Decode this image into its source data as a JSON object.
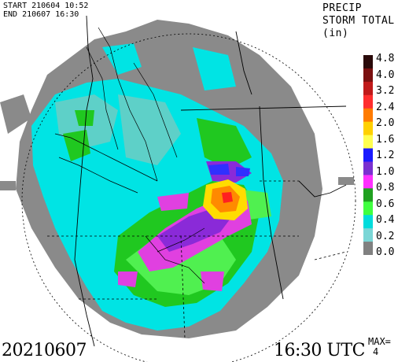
{
  "header": {
    "start_line": "START 210604 10:52",
    "end_line": "END 210607 16:30"
  },
  "title": {
    "line1": "PRECIP",
    "line2": "STORM TOTAL",
    "line3": "(in)"
  },
  "legend": {
    "ticks": [
      "4.8",
      "4.0",
      "3.2",
      "2.4",
      "2.0",
      "1.6",
      "1.2",
      "1.0",
      "0.8",
      "0.6",
      "0.4",
      "0.2",
      "0.0"
    ],
    "colors": [
      "#2a0a0a",
      "#7a1010",
      "#c01a1a",
      "#ff2e2e",
      "#ff7b00",
      "#ffd000",
      "#ffff50",
      "#1a1aff",
      "#7a30d0",
      "#ff30ff",
      "#20a020",
      "#40ff40",
      "#00dcdc",
      "#7ad6d6",
      "#808080"
    ]
  },
  "colors": {
    "gray": "#8a8a8a",
    "cyan": "#00e4e4",
    "teal": "#5ed0c8",
    "green": "#20c820",
    "lightgreen": "#50f050",
    "magenta": "#e040e0",
    "purple": "#8a2ad8",
    "blue": "#3030ff",
    "yellow": "#ffdc00",
    "orange": "#ff8a00",
    "red": "#ff2020"
  },
  "footer": {
    "date": "20210607",
    "time": "16:30 UTC",
    "max_label": "MAX=",
    "max_value": "4"
  }
}
